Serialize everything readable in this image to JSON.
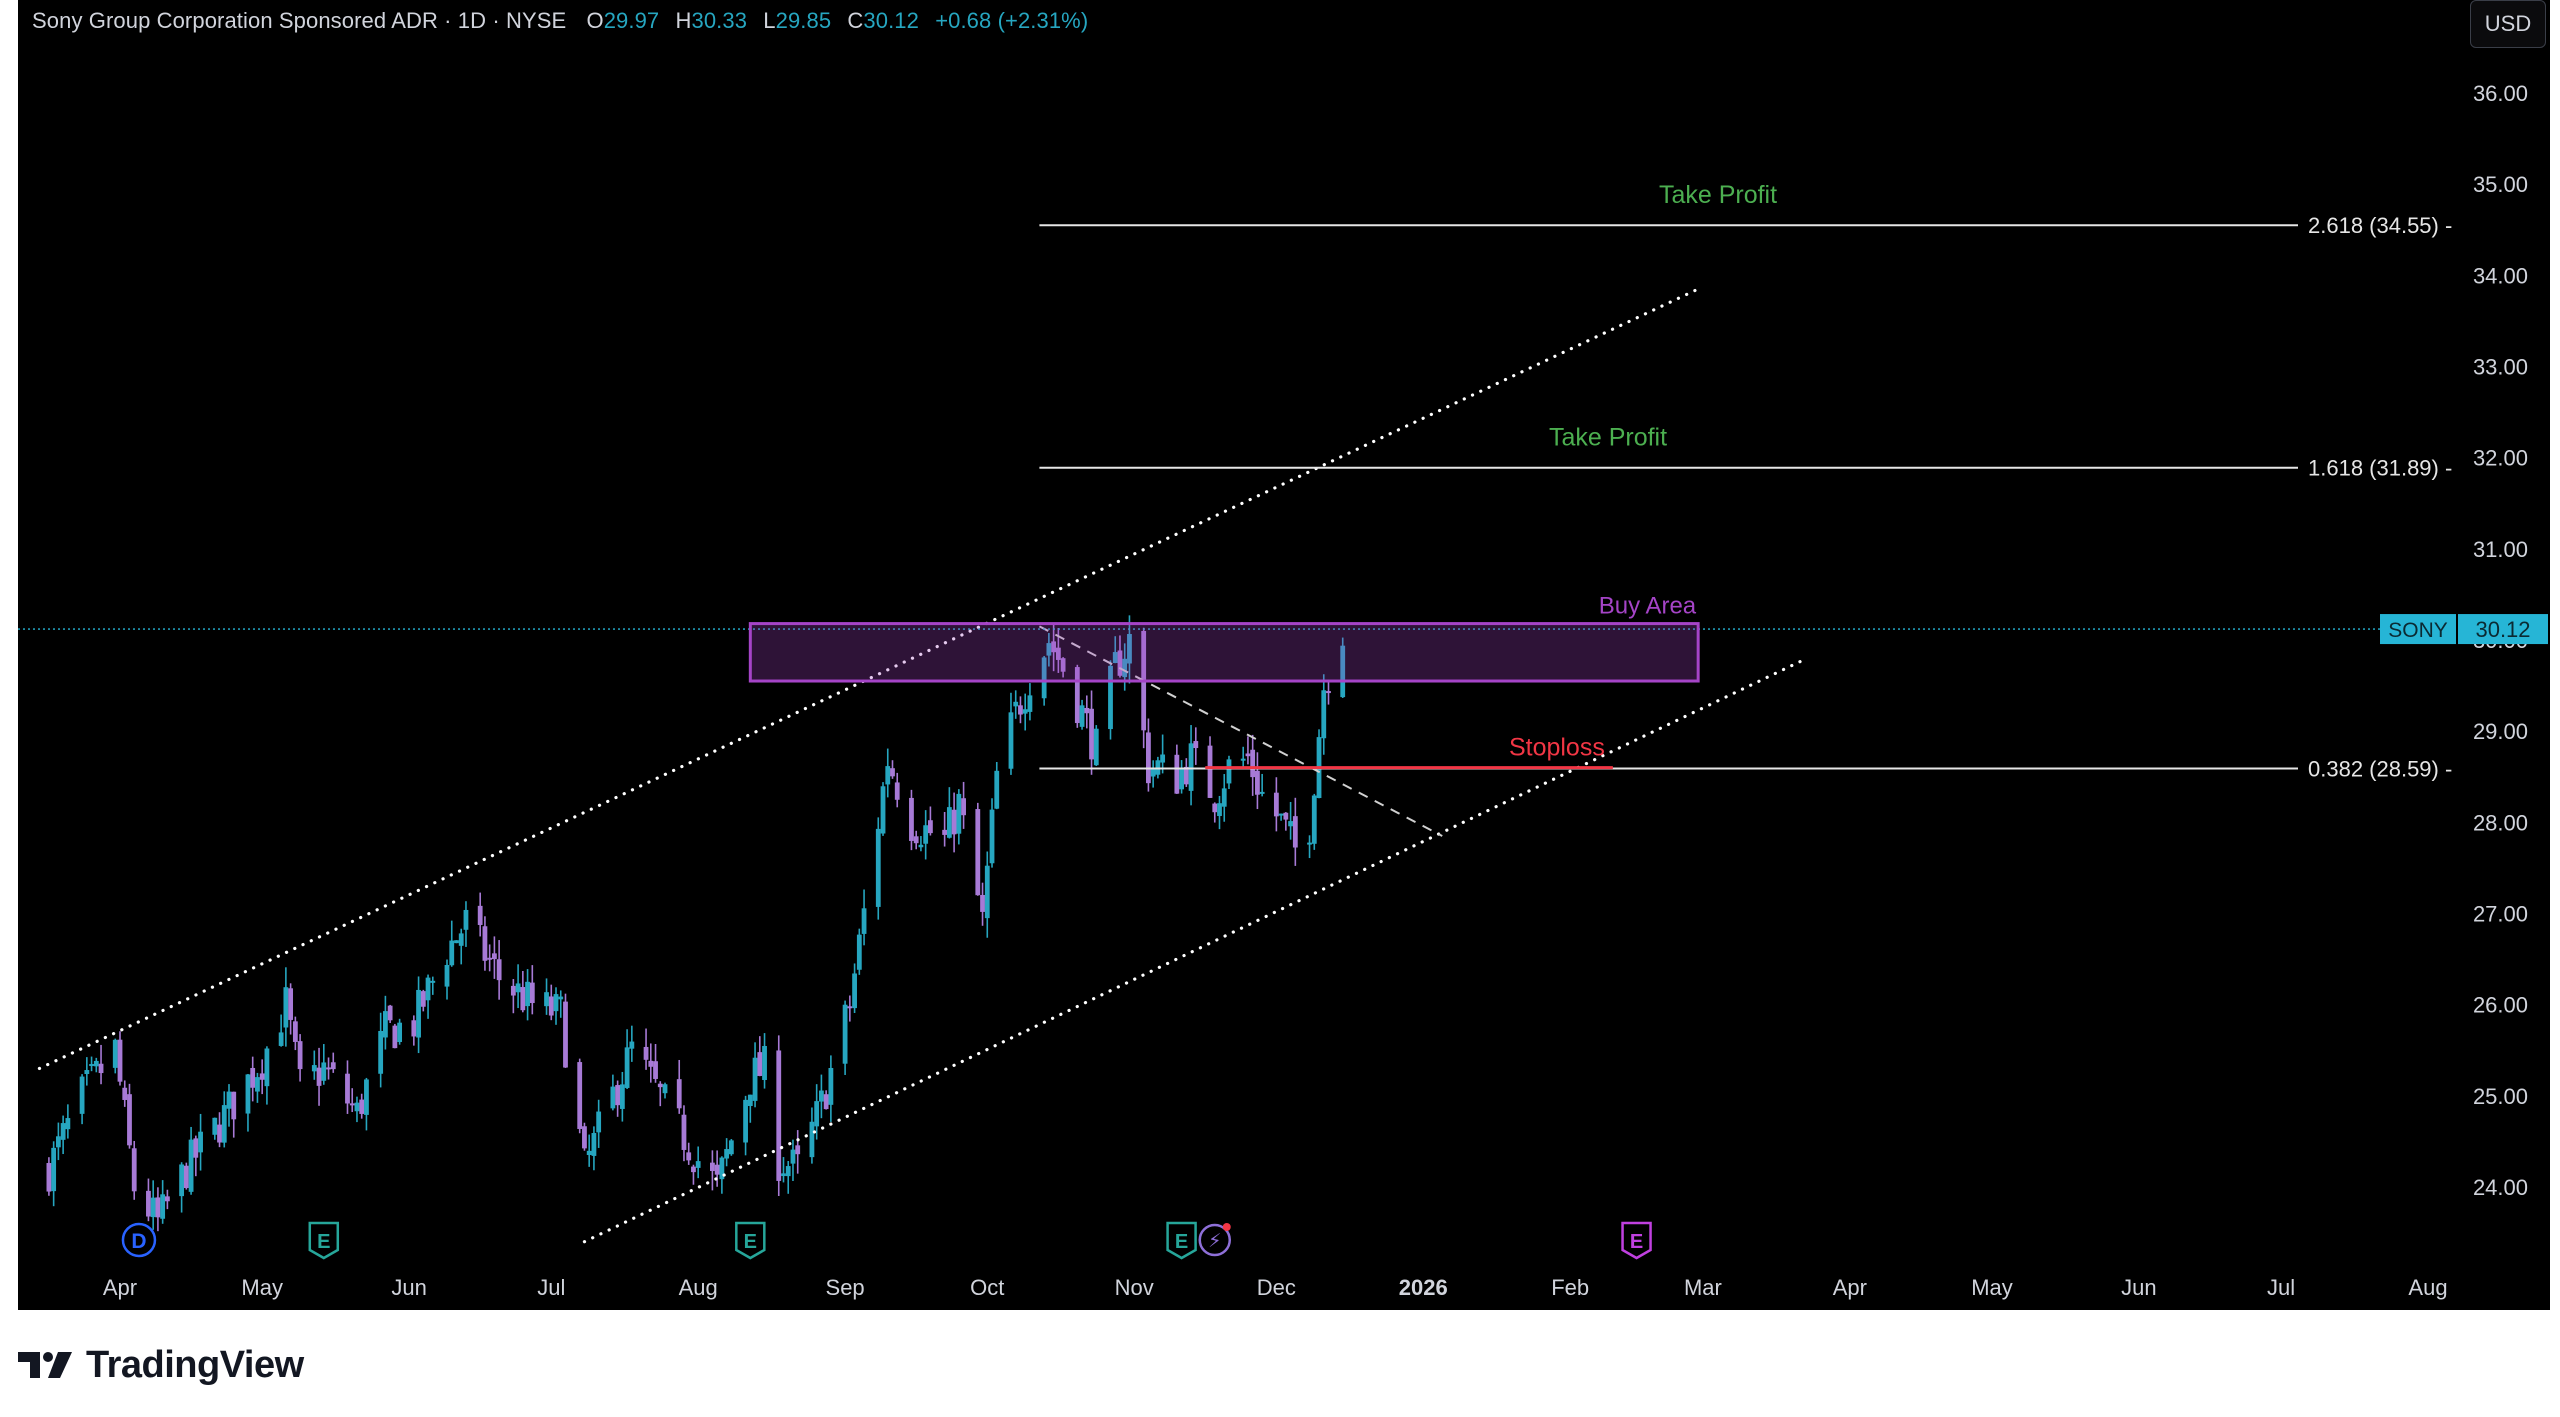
{
  "legend": {
    "symbol_line": "Sony Group Corporation Sponsored ADR · 1D · NYSE",
    "o_label": "O",
    "o_value": "29.97",
    "h_label": "H",
    "h_value": "30.33",
    "l_label": "L",
    "l_value": "29.85",
    "c_label": "C",
    "c_value": "30.12",
    "change": "+0.68 (+2.31%)"
  },
  "currency_button": "USD",
  "footer": {
    "brand": "TradingView",
    "logo_icon": "tradingview-logo-icon"
  },
  "colors": {
    "up": "#26a6c0",
    "down": "#a77ad6",
    "take_profit": "#4caf50",
    "buy_area": "#a544c7",
    "stoploss": "#f23645",
    "last_price": "#26b5d6"
  },
  "chart_data": {
    "type": "candlestick",
    "y_axis": {
      "range": [
        23.3,
        36.6
      ],
      "ticks": [
        "24.00",
        "25.00",
        "26.00",
        "27.00",
        "28.00",
        "29.00",
        "30.00",
        "31.00",
        "32.00",
        "33.00",
        "34.00",
        "35.00",
        "36.00"
      ]
    },
    "x_axis": {
      "range": [
        "2025-03-15",
        "2026-08-10"
      ],
      "ticks": [
        {
          "label": "Apr",
          "date": "2025-04-01",
          "bold": false
        },
        {
          "label": "May",
          "date": "2025-05-01",
          "bold": false
        },
        {
          "label": "Jun",
          "date": "2025-06-01",
          "bold": false
        },
        {
          "label": "Jul",
          "date": "2025-07-01",
          "bold": false
        },
        {
          "label": "Aug",
          "date": "2025-08-01",
          "bold": false
        },
        {
          "label": "Sep",
          "date": "2025-09-01",
          "bold": false
        },
        {
          "label": "Oct",
          "date": "2025-10-01",
          "bold": false
        },
        {
          "label": "Nov",
          "date": "2025-11-01",
          "bold": false
        },
        {
          "label": "Dec",
          "date": "2025-12-01",
          "bold": false
        },
        {
          "label": "2026",
          "date": "2026-01-01",
          "bold": true
        },
        {
          "label": "Feb",
          "date": "2026-02-01",
          "bold": false
        },
        {
          "label": "Mar",
          "date": "2026-03-01",
          "bold": false
        },
        {
          "label": "Apr",
          "date": "2026-04-01",
          "bold": false
        },
        {
          "label": "May",
          "date": "2026-05-01",
          "bold": false
        },
        {
          "label": "Jun",
          "date": "2026-06-01",
          "bold": false
        },
        {
          "label": "Jul",
          "date": "2026-07-01",
          "bold": false
        },
        {
          "label": "Aug",
          "date": "2026-08-01",
          "bold": false
        }
      ]
    },
    "price_path": [
      [
        "2025-03-17",
        24.2
      ],
      [
        "2025-03-24",
        25.0
      ],
      [
        "2025-03-31",
        25.5
      ],
      [
        "2025-04-04",
        24.0
      ],
      [
        "2025-04-09",
        23.6
      ],
      [
        "2025-04-15",
        24.2
      ],
      [
        "2025-04-22",
        24.7
      ],
      [
        "2025-05-01",
        25.4
      ],
      [
        "2025-05-06",
        26.0
      ],
      [
        "2025-05-09",
        25.1
      ],
      [
        "2025-05-14",
        25.3
      ],
      [
        "2025-05-21",
        24.8
      ],
      [
        "2025-05-27",
        25.7
      ],
      [
        "2025-06-02",
        25.8
      ],
      [
        "2025-06-09",
        26.6
      ],
      [
        "2025-06-13",
        26.9
      ],
      [
        "2025-06-20",
        26.3
      ],
      [
        "2025-06-27",
        26.0
      ],
      [
        "2025-07-03",
        25.9
      ],
      [
        "2025-07-08",
        24.2
      ],
      [
        "2025-07-14",
        25.0
      ],
      [
        "2025-07-18",
        25.5
      ],
      [
        "2025-07-25",
        24.9
      ],
      [
        "2025-08-01",
        24.3
      ],
      [
        "2025-08-05",
        24.0
      ],
      [
        "2025-08-12",
        25.2
      ],
      [
        "2025-08-15",
        25.3
      ],
      [
        "2025-08-18",
        24.3
      ],
      [
        "2025-08-22",
        24.2
      ],
      [
        "2025-08-27",
        24.9
      ],
      [
        "2025-09-02",
        26.0
      ],
      [
        "2025-09-05",
        27.0
      ],
      [
        "2025-09-10",
        28.7
      ],
      [
        "2025-09-15",
        28.0
      ],
      [
        "2025-09-22",
        27.8
      ],
      [
        "2025-09-25",
        28.2
      ],
      [
        "2025-09-30",
        26.9
      ],
      [
        "2025-10-03",
        28.5
      ],
      [
        "2025-10-07",
        29.2
      ],
      [
        "2025-10-10",
        29.6
      ],
      [
        "2025-10-14",
        30.0
      ],
      [
        "2025-10-17",
        29.7
      ],
      [
        "2025-10-21",
        29.2
      ],
      [
        "2025-10-24",
        28.8
      ],
      [
        "2025-10-28",
        29.7
      ],
      [
        "2025-10-31",
        30.0
      ],
      [
        "2025-11-04",
        28.6
      ],
      [
        "2025-11-06",
        28.6
      ],
      [
        "2025-11-10",
        28.5
      ],
      [
        "2025-11-13",
        28.7
      ],
      [
        "2025-11-18",
        28.3
      ],
      [
        "2025-11-21",
        28.6
      ],
      [
        "2025-11-25",
        28.7
      ],
      [
        "2025-11-28",
        28.3
      ],
      [
        "2025-12-02",
        28.0
      ],
      [
        "2025-12-05",
        27.7
      ],
      [
        "2025-12-08",
        28.0
      ],
      [
        "2025-12-11",
        29.5
      ],
      [
        "2025-12-15",
        30.12
      ]
    ],
    "fib_levels": [
      {
        "label": "2.618 (34.55)",
        "value": 34.55,
        "start": "2025-10-12",
        "note": "Take Profit"
      },
      {
        "label": "1.618 (31.89)",
        "value": 31.89,
        "start": "2025-10-12",
        "note": "Take Profit"
      },
      {
        "label": "0.382 (28.59)",
        "value": 28.59,
        "start": "2025-10-12",
        "note": ""
      }
    ],
    "buy_area": {
      "label": "Buy Area",
      "low": 29.55,
      "high": 30.18,
      "start": "2025-08-12",
      "end": "2026-02-28"
    },
    "stoploss": {
      "label": "Stoploss",
      "value": 28.6,
      "start": "2025-11-16",
      "end": "2026-02-10"
    },
    "channel_upper": [
      [
        "2025-03-15",
        25.3
      ],
      [
        "2026-02-28",
        33.85
      ]
    ],
    "channel_lower": [
      [
        "2025-07-08",
        23.4
      ],
      [
        "2026-03-23",
        29.8
      ]
    ],
    "downtrend_line": [
      [
        "2025-10-12",
        30.15
      ],
      [
        "2026-01-05",
        27.85
      ]
    ],
    "last_price": {
      "symbol": "SONY",
      "value": "30.12",
      "price": 30.12
    },
    "event_markers": [
      {
        "type": "D",
        "date": "2025-04-05",
        "color": "#2962ff",
        "name": "dividend-marker-icon"
      },
      {
        "type": "E",
        "date": "2025-05-14",
        "color": "#26a69a",
        "name": "earnings-marker-icon"
      },
      {
        "type": "E",
        "date": "2025-08-12",
        "color": "#26a69a",
        "name": "earnings-marker-icon"
      },
      {
        "type": "E",
        "date": "2025-11-11",
        "color": "#26a69a",
        "name": "earnings-marker-icon"
      },
      {
        "type": "⚡",
        "date": "2025-11-18",
        "color": "#8e6fd8",
        "name": "flash-news-marker-icon"
      },
      {
        "type": "E",
        "date": "2026-02-15",
        "color": "#c040e0",
        "name": "upcoming-earnings-marker-icon"
      }
    ]
  }
}
